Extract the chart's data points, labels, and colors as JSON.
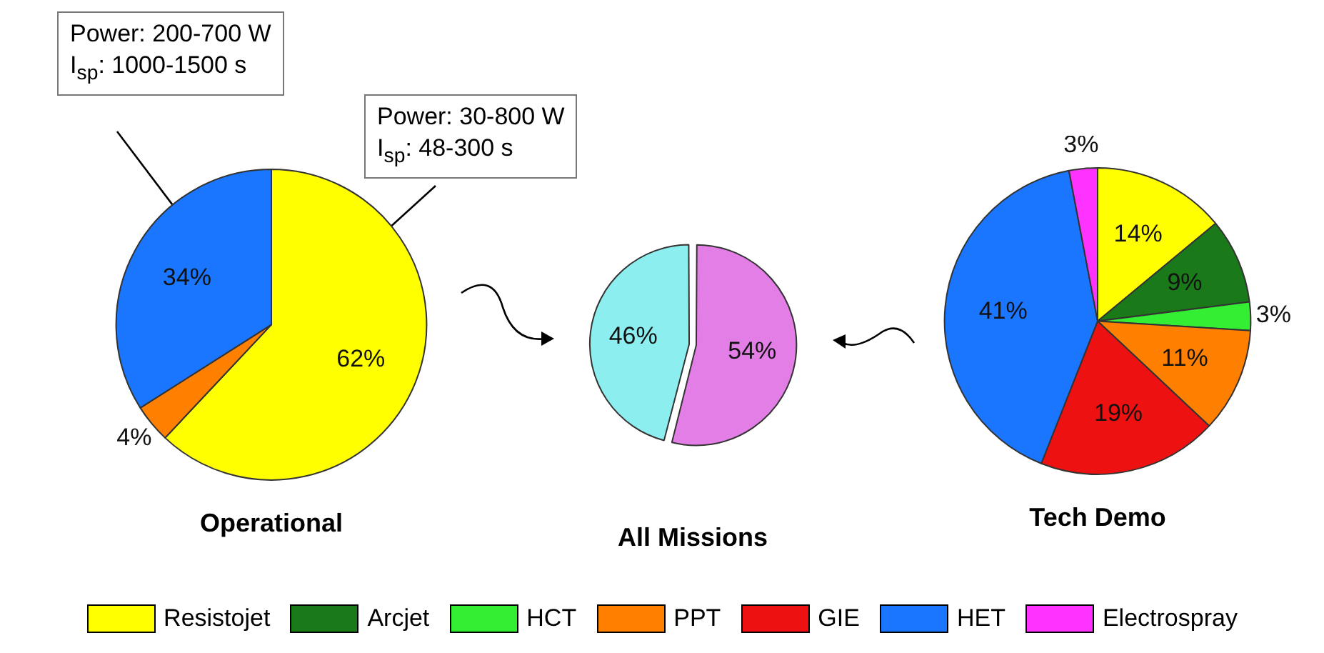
{
  "chart_data": [
    {
      "type": "pie",
      "title": "Operational",
      "categories": [
        null,
        null,
        null
      ],
      "values": [
        62,
        4,
        34
      ],
      "colors": [
        "#ffff00",
        "#ff8000",
        "#1a75ff"
      ],
      "value_labels": [
        "62%",
        "4%",
        "34%"
      ],
      "annotations": [
        "Power: 200-700 W I$_{sp}$: 1000-1500 s",
        "Power: 30-800 W I$_{sp}$: 48-300 s"
      ]
    },
    {
      "type": "pie",
      "title": "All Missions",
      "categories": [
        null,
        null
      ],
      "values": [
        54,
        46
      ],
      "colors": [
        "#e27ee6",
        "#8ceeee"
      ],
      "value_labels": [
        "54%",
        "46%"
      ]
    },
    {
      "type": "pie",
      "title": "Tech Demo",
      "categories": [
        "Resistojet",
        "Arcjet",
        "HCT",
        "PPT",
        "GIE",
        "HET",
        "Electrospray"
      ],
      "values": [
        14,
        9,
        3,
        11,
        19,
        41,
        3
      ],
      "colors": [
        "#ffff00",
        "#1a7a1a",
        "#33ee33",
        "#ff8000",
        "#ee1111",
        "#1a75ff",
        "#ff33ff"
      ],
      "value_labels": [
        "14%",
        "9%",
        "3%",
        "11%",
        "19%",
        "41%",
        "3%"
      ],
      "legend": "bottom"
    }
  ]
}
